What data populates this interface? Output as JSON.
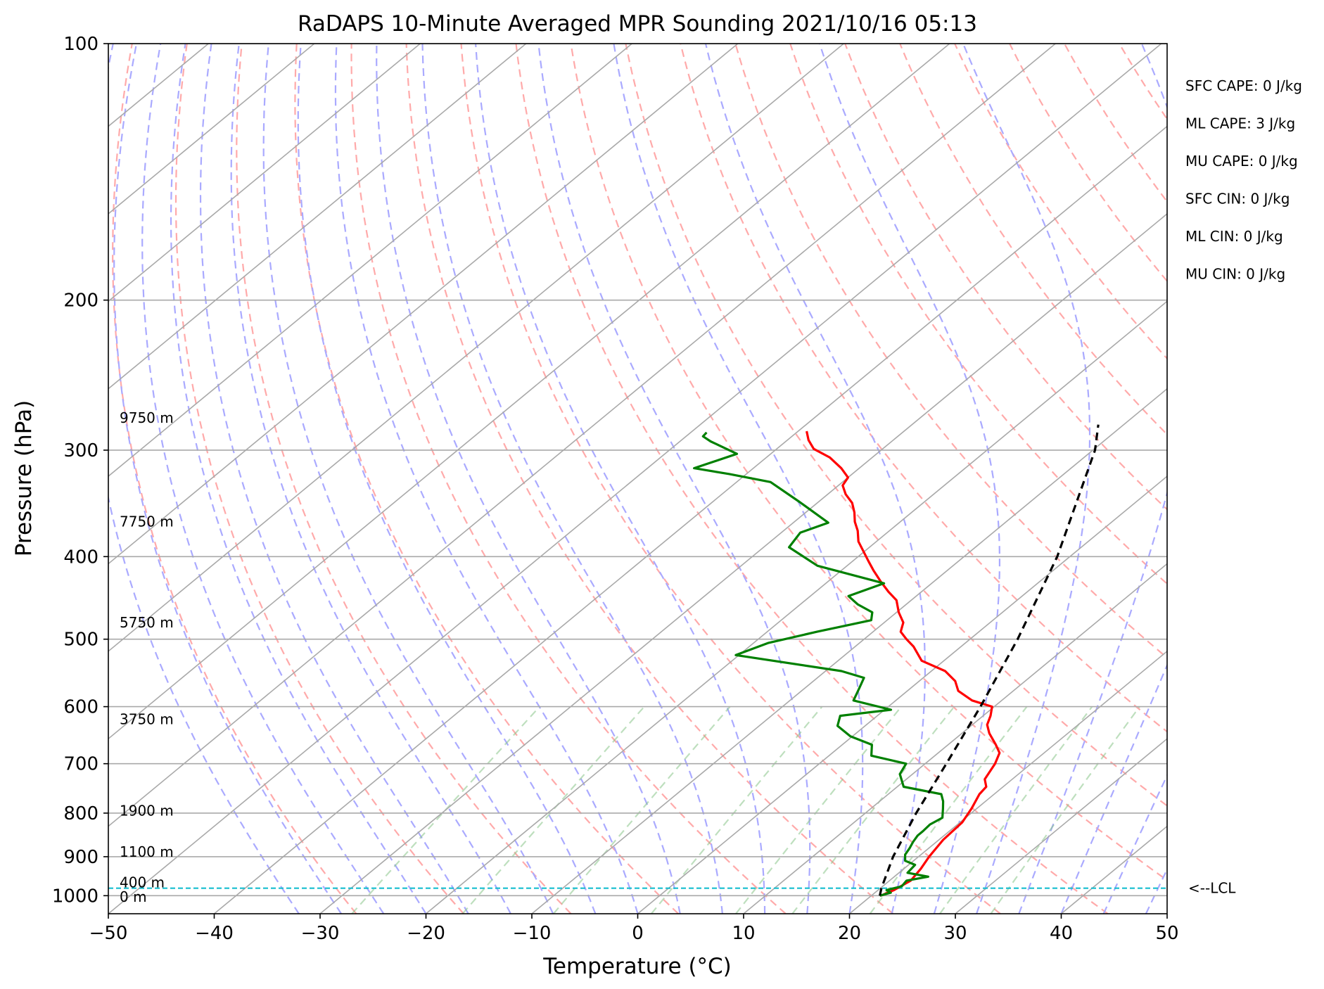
{
  "chart_data": {
    "type": "line",
    "subtype": "skew-T log-p",
    "title": "RaDAPS 10-Minute Averaged MPR Sounding 2021/10/16 05:13",
    "xlabel": "Temperature (°C)",
    "ylabel": "Pressure (hPa)",
    "xlim": [
      -50,
      50
    ],
    "ylim": [
      1050,
      100
    ],
    "y_scale": "log",
    "grid": true,
    "x_ticks": [
      -50,
      -40,
      -30,
      -20,
      -10,
      0,
      10,
      20,
      30,
      40,
      50
    ],
    "x_tick_labels": [
      "−50",
      "−40",
      "−30",
      "−20",
      "−10",
      "0",
      "10",
      "20",
      "30",
      "40",
      "50"
    ],
    "y_ticks": [
      1000,
      900,
      800,
      700,
      600,
      500,
      400,
      300,
      200,
      100
    ],
    "y_tick_labels": [
      "1000",
      "900",
      "800",
      "700",
      "600",
      "500",
      "400",
      "300",
      "200",
      "100"
    ],
    "height_labels": [
      {
        "text": "9750 m",
        "p": 275
      },
      {
        "text": "7750 m",
        "p": 364
      },
      {
        "text": "5750 m",
        "p": 478
      },
      {
        "text": "3750 m",
        "p": 621
      },
      {
        "text": "1900 m",
        "p": 795
      },
      {
        "text": "1100 m",
        "p": 888
      },
      {
        "text": "400 m",
        "p": 965
      },
      {
        "text": "0 m",
        "p": 1003
      }
    ],
    "indices": [
      "SFC CAPE: 0 J/kg",
      "ML CAPE: 3 J/kg",
      "MU CAPE: 0 J/kg",
      "SFC CIN: 0 J/kg",
      "ML CIN: 0 J/kg",
      "MU CIN: 0 J/kg"
    ],
    "lcl": {
      "p": 980,
      "label": "<--LCL",
      "color": "#17becf"
    },
    "colors": {
      "temperature": "#ff0000",
      "dewpoint": "#008000",
      "parcel": "#000000",
      "isotherm": "#a9a9a9",
      "dry_adiabat": "#ffaaaa",
      "moist_adiabat": "#aaaaff",
      "mixing_ratio": "#88c488",
      "lcl": "#17becf"
    },
    "series": [
      {
        "key": "temperature",
        "points": [
          [
            20.9,
            1000
          ],
          [
            21.5,
            985
          ],
          [
            22.0,
            960
          ],
          [
            21.6,
            930
          ],
          [
            21.0,
            900
          ],
          [
            20.4,
            860
          ],
          [
            20.2,
            820
          ],
          [
            19.5,
            790
          ],
          [
            18.6,
            760
          ],
          [
            18.4,
            745
          ],
          [
            17.4,
            730
          ],
          [
            16.6,
            700
          ],
          [
            15.8,
            680
          ],
          [
            14.5,
            665
          ],
          [
            12.6,
            645
          ],
          [
            11.4,
            630
          ],
          [
            10.7,
            615
          ],
          [
            9.8,
            600
          ],
          [
            7.2,
            590
          ],
          [
            4.8,
            575
          ],
          [
            3.4,
            560
          ],
          [
            1.3,
            545
          ],
          [
            -2.1,
            530
          ],
          [
            -4.5,
            510
          ],
          [
            -6.0,
            500
          ],
          [
            -7.4,
            490
          ],
          [
            -8.2,
            478
          ],
          [
            -9.8,
            465
          ],
          [
            -11.4,
            450
          ],
          [
            -13.1,
            440
          ],
          [
            -15.0,
            428
          ],
          [
            -17.0,
            415
          ],
          [
            -18.5,
            405
          ],
          [
            -20.0,
            395
          ],
          [
            -21.7,
            384
          ],
          [
            -23.0,
            373
          ],
          [
            -24.3,
            364
          ],
          [
            -25.4,
            355
          ],
          [
            -26.7,
            346
          ],
          [
            -28.3,
            338
          ],
          [
            -29.6,
            330
          ],
          [
            -30.0,
            323
          ],
          [
            -31.7,
            315
          ],
          [
            -34.0,
            306
          ],
          [
            -36.5,
            299
          ],
          [
            -38.0,
            292
          ],
          [
            -39.2,
            285
          ]
        ]
      },
      {
        "key": "dewpoint",
        "points": [
          [
            20.8,
            1000
          ],
          [
            21.5,
            992
          ],
          [
            20.8,
            985
          ],
          [
            21.8,
            975
          ],
          [
            21.6,
            960
          ],
          [
            23.2,
            950
          ],
          [
            20.8,
            940
          ],
          [
            20.6,
            920
          ],
          [
            19.2,
            910
          ],
          [
            18.5,
            895
          ],
          [
            18.2,
            880
          ],
          [
            17.8,
            865
          ],
          [
            17.5,
            850
          ],
          [
            17.5,
            840
          ],
          [
            17.4,
            825
          ],
          [
            17.8,
            810
          ],
          [
            16.8,
            790
          ],
          [
            16.0,
            775
          ],
          [
            15.0,
            760
          ],
          [
            10.6,
            745
          ],
          [
            8.8,
            720
          ],
          [
            8.2,
            700
          ],
          [
            4.0,
            685
          ],
          [
            2.8,
            665
          ],
          [
            -0.2,
            650
          ],
          [
            -2.6,
            632
          ],
          [
            -3.5,
            615
          ],
          [
            0.6,
            605
          ],
          [
            -4.0,
            590
          ],
          [
            -4.8,
            572
          ],
          [
            -5.6,
            555
          ],
          [
            -8.5,
            545
          ],
          [
            -20.3,
            522
          ],
          [
            -18.6,
            505
          ],
          [
            -15.3,
            490
          ],
          [
            -11.5,
            475
          ],
          [
            -12.3,
            465
          ],
          [
            -14.6,
            455
          ],
          [
            -16.4,
            445
          ],
          [
            -14.5,
            430
          ],
          [
            -22.8,
            410
          ],
          [
            -27.6,
            390
          ],
          [
            -28.2,
            375
          ],
          [
            -26.7,
            365
          ],
          [
            -31.8,
            345
          ],
          [
            -36.8,
            327
          ],
          [
            -41.6,
            320
          ],
          [
            -45.6,
            315
          ],
          [
            -43.2,
            303
          ],
          [
            -47.1,
            293
          ],
          [
            -48.4,
            289
          ],
          [
            -48.5,
            286
          ]
        ]
      },
      {
        "key": "parcel",
        "points": [
          [
            20.8,
            1000
          ],
          [
            20.1,
            980
          ],
          [
            17.6,
            900
          ],
          [
            14.8,
            800
          ],
          [
            12.0,
            700
          ],
          [
            8.7,
            600
          ],
          [
            4.5,
            500
          ],
          [
            -1.2,
            400
          ],
          [
            -9.8,
            300
          ],
          [
            -12.4,
            280
          ]
        ]
      }
    ]
  }
}
